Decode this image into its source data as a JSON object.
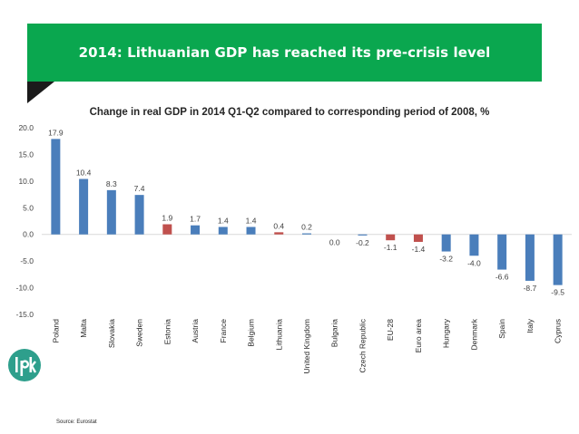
{
  "banner": {
    "title": "2014: Lithuanian GDP has reached its pre-crisis level"
  },
  "source": "Source: Eurostat",
  "logo": {
    "icon": "lpk-logo-icon"
  },
  "colors": {
    "banner": "#0aa74f",
    "bar_default": "#4a7ebb",
    "bar_highlight": "#c0504d",
    "logo": "#2e9f8c"
  },
  "chart_data": {
    "type": "bar",
    "title": "Change in real GDP in 2014 Q1-Q2 compared to corresponding period of 2008, %",
    "xlabel": "",
    "ylabel": "",
    "ylim": [
      -15,
      20
    ],
    "yticks": [
      "20.0",
      "15.0",
      "10.0",
      "5.0",
      "0.0",
      "-5.0",
      "-10.0",
      "-15.0"
    ],
    "grid": false,
    "legend": "none",
    "categories": [
      "Poland",
      "Malta",
      "Slovakia",
      "Sweden",
      "Estonia",
      "Austria",
      "France",
      "Belgium",
      "Lithuania",
      "United Kingdom",
      "Bulgaria",
      "Czech Republic",
      "EU-28",
      "Euro area",
      "Hungary",
      "Denmark",
      "Spain",
      "Italy",
      "Cyprus"
    ],
    "values": [
      17.9,
      10.4,
      8.3,
      7.4,
      1.9,
      1.7,
      1.4,
      1.4,
      0.4,
      0.2,
      0.0,
      -0.2,
      -1.1,
      -1.4,
      -3.2,
      -4.0,
      -6.6,
      -8.7,
      -9.5
    ],
    "labels": [
      "17.9",
      "10.4",
      "8.3",
      "7.4",
      "1.9",
      "1.7",
      "1.4",
      "1.4",
      "0.4",
      "0.2",
      "0.0",
      "-0.2",
      "-1.1",
      "-1.4",
      "-3.2",
      "-4.0",
      "-6.6",
      "-8.7",
      "-9.5"
    ],
    "highlighted": [
      "Estonia",
      "Lithuania",
      "EU-28",
      "Euro area"
    ]
  }
}
